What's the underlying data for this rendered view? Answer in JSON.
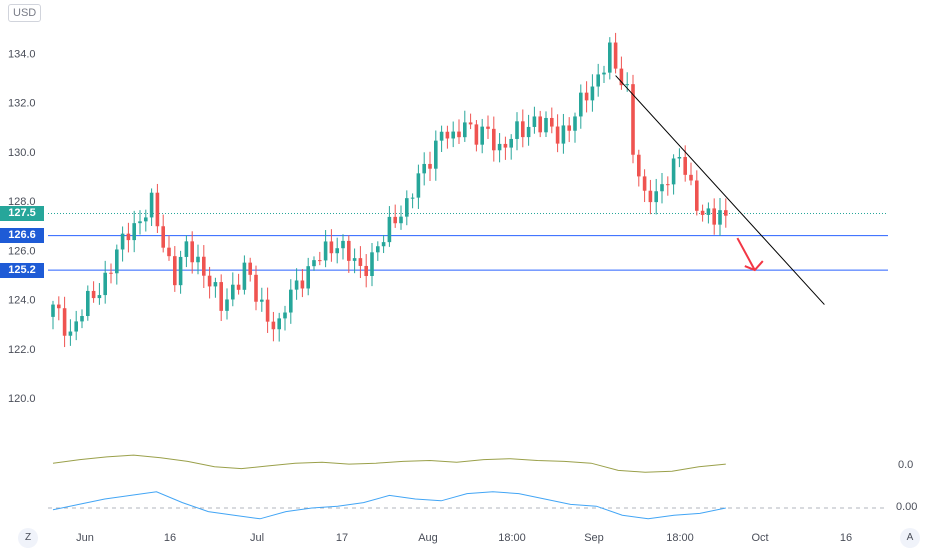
{
  "currency": "USD",
  "colors": {
    "up": "#26a69a",
    "down": "#ef5350",
    "hline": "#2962ff",
    "trendline": "#000000",
    "arrow": "#f23645",
    "dotted": "#26a69a",
    "osc1": "#9aa04a",
    "osc2": "#42a5f5",
    "tag_teal": "#26a69a",
    "tag_blue": "#1e5bd6"
  },
  "corner_left": "Z",
  "corner_right": "A",
  "price_tags": [
    {
      "label": "127.5",
      "value": 127.5,
      "style": "teal",
      "line": "dotted"
    },
    {
      "label": "126.6",
      "value": 126.6,
      "style": "blue",
      "line": "solid"
    },
    {
      "label": "125.2",
      "value": 125.2,
      "style": "blue",
      "line": "solid"
    }
  ],
  "indicator_labels": [
    "0.0",
    "0.00"
  ],
  "chart_data": {
    "type": "candlestick",
    "y_ticks": [
      "134.0",
      "132.0",
      "130.0",
      "128.0",
      "126.0",
      "124.0",
      "122.0",
      "120.0"
    ],
    "ylim": [
      118.3,
      135.6
    ],
    "x_ticks": [
      "Jun",
      "16",
      "Jul",
      "17",
      "Aug",
      "18:00",
      "Sep",
      "18:00",
      "Oct",
      "16"
    ],
    "grid": false,
    "close_path": [
      [
        0,
        123.6
      ],
      [
        3,
        122.7
      ],
      [
        5,
        123.5
      ],
      [
        8,
        124.5
      ],
      [
        11,
        125.8
      ],
      [
        13,
        126.8
      ],
      [
        15,
        127.3
      ],
      [
        17,
        127.8
      ],
      [
        19,
        126.3
      ],
      [
        21,
        125.0
      ],
      [
        23,
        126.0
      ],
      [
        25,
        125.6
      ],
      [
        27,
        124.8
      ],
      [
        29,
        123.6
      ],
      [
        31,
        124.5
      ],
      [
        33,
        125.3
      ],
      [
        35,
        124.1
      ],
      [
        37,
        123.4
      ],
      [
        39,
        122.8
      ],
      [
        41,
        124.3
      ],
      [
        43,
        125.0
      ],
      [
        45,
        125.4
      ],
      [
        47,
        126.0
      ],
      [
        49,
        126.4
      ],
      [
        51,
        125.7
      ],
      [
        53,
        125.2
      ],
      [
        55,
        125.8
      ],
      [
        57,
        126.4
      ],
      [
        59,
        127.4
      ],
      [
        61,
        127.9
      ],
      [
        63,
        128.8
      ],
      [
        65,
        129.8
      ],
      [
        67,
        130.9
      ],
      [
        69,
        130.3
      ],
      [
        71,
        131.4
      ],
      [
        73,
        130.6
      ],
      [
        75,
        130.7
      ],
      [
        77,
        130.2
      ],
      [
        79,
        130.6
      ],
      [
        81,
        130.8
      ],
      [
        83,
        131.4
      ],
      [
        85,
        131.0
      ],
      [
        87,
        130.6
      ],
      [
        89,
        131.2
      ],
      [
        91,
        131.9
      ],
      [
        93,
        132.6
      ],
      [
        95,
        133.7
      ],
      [
        96,
        134.1
      ],
      [
        97,
        133.2
      ],
      [
        99,
        132.5
      ],
      [
        100,
        130.3
      ],
      [
        102,
        128.0
      ],
      [
        104,
        128.2
      ],
      [
        106,
        129.2
      ],
      [
        108,
        129.7
      ],
      [
        110,
        128.5
      ],
      [
        112,
        127.6
      ],
      [
        114,
        127.2
      ],
      [
        116,
        127.4
      ]
    ],
    "future_slots": 24,
    "trendline": {
      "from": [
        97,
        133.1
      ],
      "to": [
        133,
        123.8
      ]
    },
    "arrow": {
      "from": [
        118,
        126.5
      ],
      "to": [
        121,
        125.2
      ]
    },
    "oscillators": [
      {
        "name": "",
        "zero_label": "0.0",
        "zero": 0,
        "values": [
          0.2,
          0.6,
          0.9,
          1.1,
          0.8,
          0.4,
          -0.2,
          -0.4,
          -0.1,
          0.2,
          0.3,
          0.1,
          0.2,
          0.4,
          0.5,
          0.3,
          0.6,
          0.7,
          0.5,
          0.4,
          0.2,
          -0.6,
          -0.8,
          -0.7,
          -0.2,
          0.1
        ]
      },
      {
        "name": "",
        "zero_label": "0.00",
        "zero": 0,
        "values": [
          -0.1,
          0.2,
          0.5,
          0.7,
          0.9,
          0.3,
          -0.2,
          -0.4,
          -0.6,
          -0.2,
          0.0,
          0.1,
          0.3,
          0.7,
          0.5,
          0.4,
          0.8,
          0.9,
          0.8,
          0.5,
          0.2,
          0.1,
          -0.4,
          -0.6,
          -0.4,
          -0.3,
          0.0
        ]
      }
    ]
  }
}
